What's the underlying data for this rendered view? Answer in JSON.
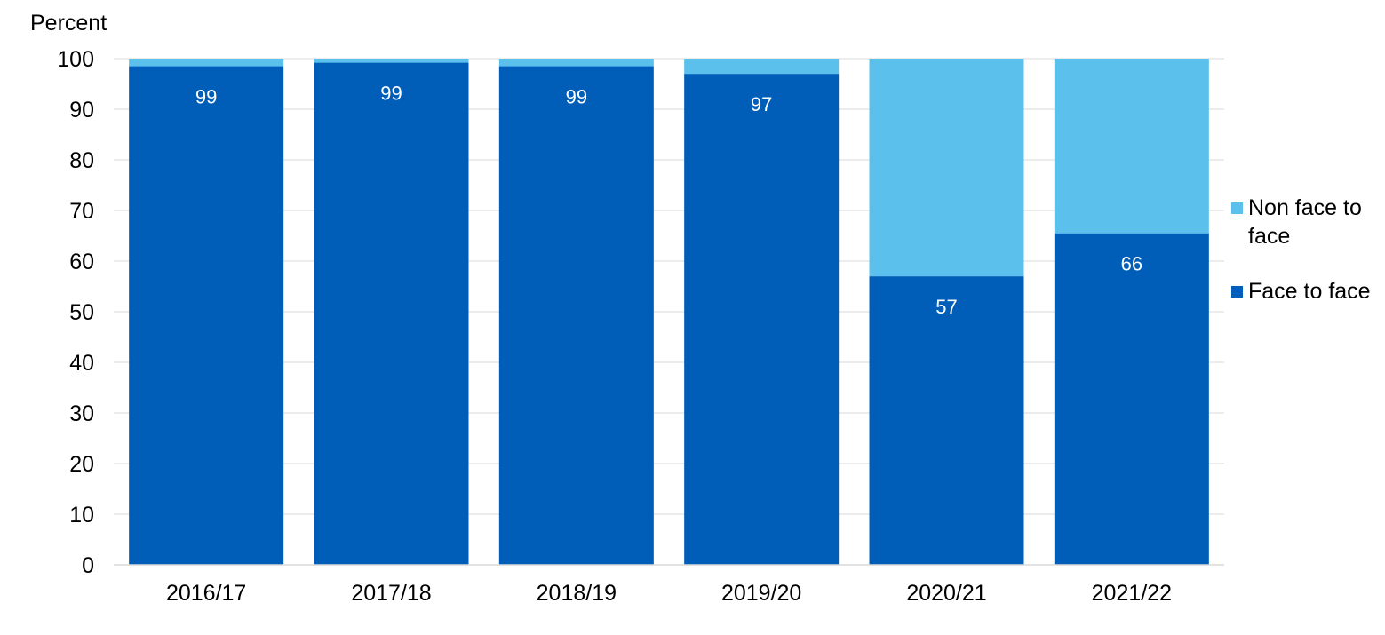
{
  "chart_data": {
    "type": "bar",
    "stacked": true,
    "ylabel": "Percent",
    "ylim": [
      0,
      100
    ],
    "yticks": [
      0,
      10,
      20,
      30,
      40,
      50,
      60,
      70,
      80,
      90,
      100
    ],
    "categories": [
      "2016/17",
      "2017/18",
      "2018/19",
      "2019/20",
      "2020/21",
      "2021/22"
    ],
    "series": [
      {
        "name": "Face to face",
        "color": "#005EB8",
        "values": [
          98.5,
          99.2,
          98.5,
          97,
          57,
          65.5
        ],
        "labels": [
          "99",
          "99",
          "99",
          "97",
          "57",
          "66"
        ]
      },
      {
        "name": "Non face to face",
        "color": "#5BC0EB",
        "values": [
          1.5,
          0.8,
          1.5,
          3,
          43,
          34.5
        ]
      }
    ],
    "grid": true,
    "legend_position": "right"
  }
}
